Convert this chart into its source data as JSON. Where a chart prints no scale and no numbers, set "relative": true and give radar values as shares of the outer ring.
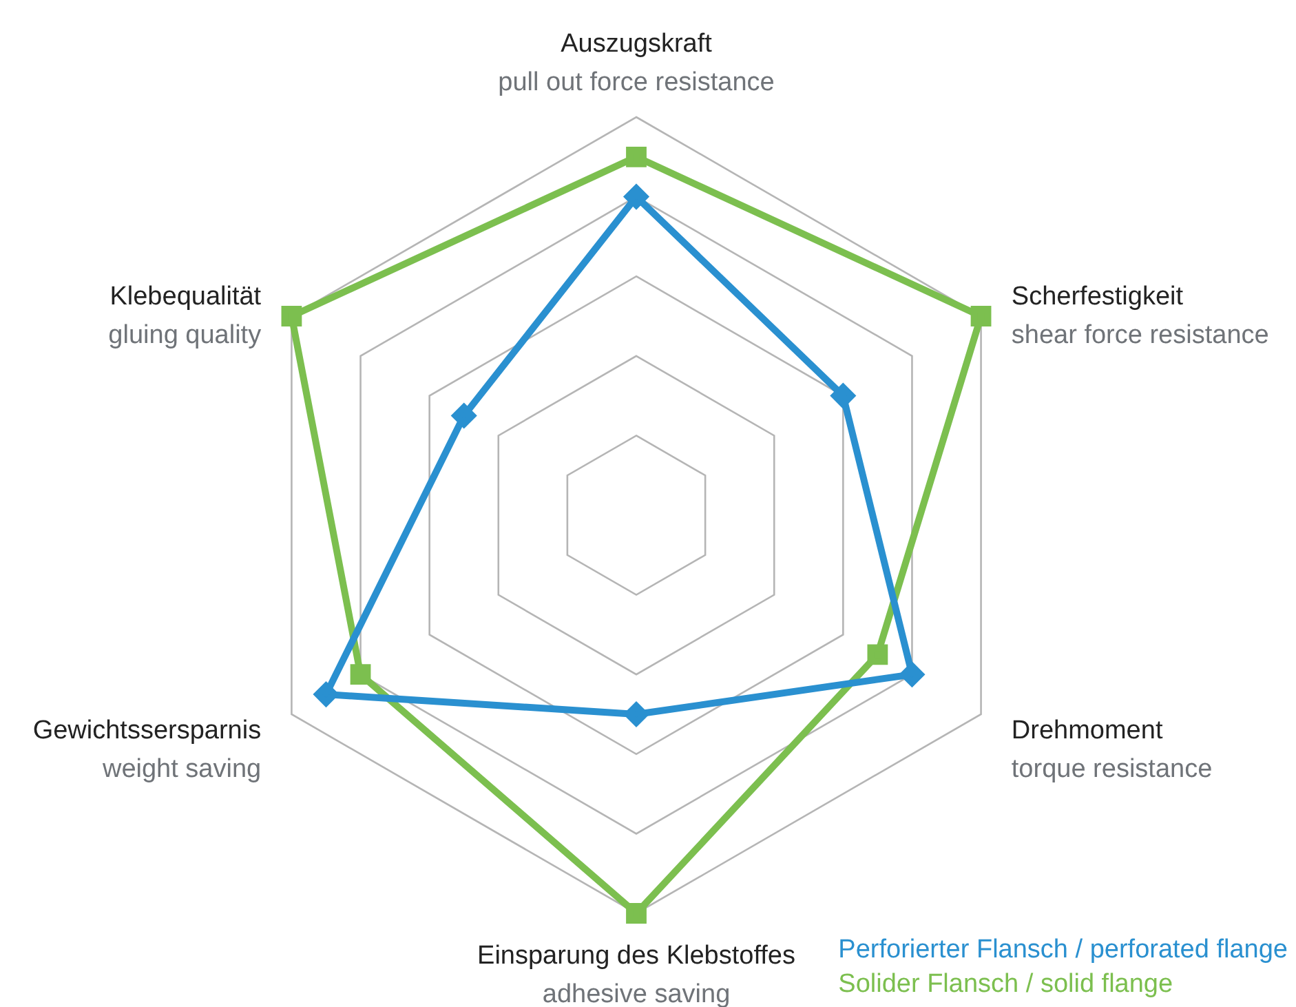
{
  "chart_data": {
    "type": "radar",
    "relative": true,
    "grid": true,
    "legend": "bottom right",
    "line_style": "solid",
    "categories": [
      "Auszugskraft\npull out force resistance",
      "Scherfestigkeit\nshear force resistance",
      "Drehmoment\ntorque resistance",
      "Einsparung des Klebstoffes\nadhesive saving",
      "Gewichtssersparnis\nweight saving",
      "Klebequalität\ngluing quality"
    ],
    "series": [
      {
        "name": "Perforierter Flansch / perforated flange",
        "color": "#2a90d0",
        "marker": "diamond",
        "values": [
          0.8,
          0.6,
          0.8,
          0.5,
          0.9,
          0.5
        ]
      },
      {
        "name": "Solider Flansch / solid flange",
        "color": "#7cbf4f",
        "marker": "square",
        "values": [
          0.9,
          1.0,
          0.7,
          1.0,
          0.8,
          1.0
        ]
      }
    ]
  }
}
